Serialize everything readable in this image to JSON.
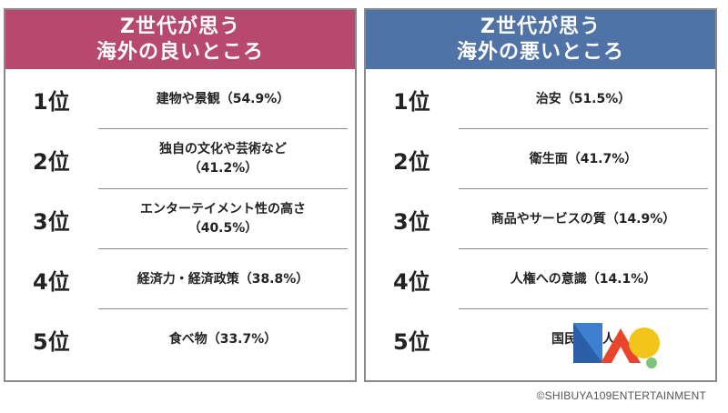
{
  "left_panel": {
    "title_line1": "Z世代が思う",
    "title_line2": "海外の良いところ",
    "header_color": "#b6496d",
    "items": [
      {
        "rank": "1位",
        "line1": "建物や景観（54.9%）",
        "line2": ""
      },
      {
        "rank": "2位",
        "line1": "独自の文化や芸術など",
        "line2": "（41.2%）"
      },
      {
        "rank": "3位",
        "line1": "エンターテイメント性の高さ",
        "line2": "（40.5%）"
      },
      {
        "rank": "4位",
        "line1": "経済力・経済政策（38.8%）",
        "line2": ""
      },
      {
        "rank": "5位",
        "line1": "食べ物（33.7%）",
        "line2": ""
      }
    ]
  },
  "right_panel": {
    "title_line1": "Z世代が思う",
    "title_line2": "海外の悪いところ",
    "header_color": "#4f73a6",
    "items": [
      {
        "rank": "1位",
        "line1": "治安（51.5%）",
        "line2": ""
      },
      {
        "rank": "2位",
        "line1": "衛生面（41.7%）",
        "line2": ""
      },
      {
        "rank": "3位",
        "line1": "商品やサービスの質（14.9%）",
        "line2": ""
      },
      {
        "rank": "4位",
        "line1": "人権への意識（14.1%）",
        "line2": ""
      },
      {
        "rank": "5位",
        "line1": "国民性・人",
        "line2": ""
      }
    ]
  },
  "credit": "©SHIBUYA109ENTERTAINMENT",
  "overlay_logo_icon": "shapes-logo-icon"
}
